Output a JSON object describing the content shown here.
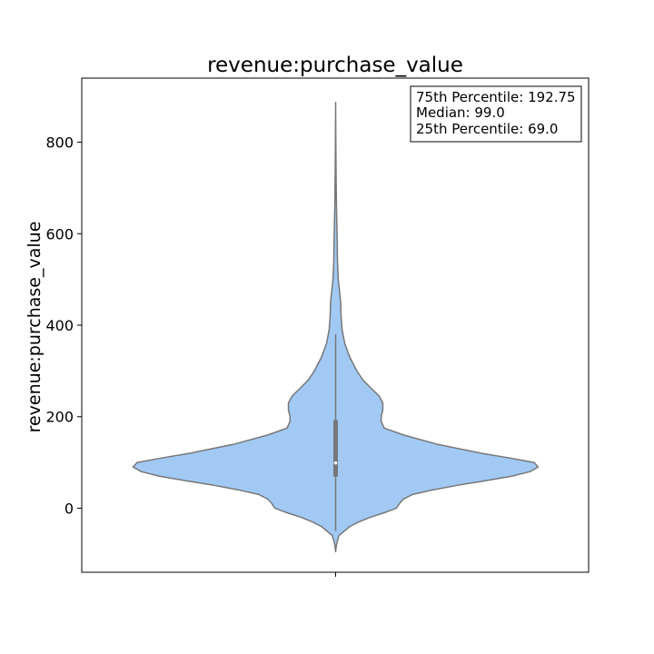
{
  "chart_data": {
    "type": "violin",
    "title": "revenue:purchase_value",
    "xlabel": "",
    "ylabel": "revenue:purchase_value",
    "ylim": [
      -140,
      940
    ],
    "yticks": [
      0,
      200,
      400,
      600,
      800
    ],
    "ytick_labels": [
      "0",
      "200",
      "400",
      "600",
      "800"
    ],
    "grid": false,
    "colors": {
      "fill": "#a1c9f4",
      "edge": "#777777",
      "box": "#777777",
      "median": "#ffffff"
    },
    "box": {
      "q1": 69.0,
      "median": 99.0,
      "q3": 192.75,
      "whisker_low": -50,
      "whisker_high": 380
    },
    "annotation": {
      "position": "top-right",
      "lines": [
        "75th Percentile: 192.75",
        "Median: 99.0",
        "25th Percentile: 69.0"
      ]
    },
    "density_profile": [
      [
        -95,
        0.0
      ],
      [
        -80,
        0.004
      ],
      [
        -60,
        0.016
      ],
      [
        -40,
        0.07
      ],
      [
        -30,
        0.115
      ],
      [
        -20,
        0.17
      ],
      [
        -10,
        0.24
      ],
      [
        0,
        0.3
      ],
      [
        10,
        0.315
      ],
      [
        20,
        0.335
      ],
      [
        30,
        0.38
      ],
      [
        40,
        0.48
      ],
      [
        50,
        0.6
      ],
      [
        60,
        0.74
      ],
      [
        70,
        0.87
      ],
      [
        80,
        0.96
      ],
      [
        90,
        1.0
      ],
      [
        100,
        0.98
      ],
      [
        110,
        0.855
      ],
      [
        120,
        0.72
      ],
      [
        140,
        0.5
      ],
      [
        160,
        0.335
      ],
      [
        175,
        0.24
      ],
      [
        190,
        0.225
      ],
      [
        200,
        0.225
      ],
      [
        215,
        0.233
      ],
      [
        230,
        0.233
      ],
      [
        245,
        0.215
      ],
      [
        260,
        0.18
      ],
      [
        280,
        0.135
      ],
      [
        300,
        0.105
      ],
      [
        330,
        0.07
      ],
      [
        360,
        0.045
      ],
      [
        390,
        0.032
      ],
      [
        420,
        0.027
      ],
      [
        450,
        0.025
      ],
      [
        480,
        0.018
      ],
      [
        500,
        0.013
      ],
      [
        540,
        0.009
      ],
      [
        580,
        0.008
      ],
      [
        620,
        0.006
      ],
      [
        660,
        0.004
      ],
      [
        700,
        0.003
      ],
      [
        740,
        0.002
      ],
      [
        800,
        0.001
      ],
      [
        887,
        0.0
      ]
    ]
  }
}
